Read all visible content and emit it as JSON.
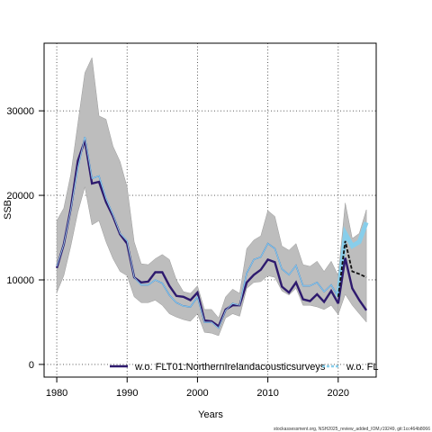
{
  "chart_data": {
    "type": "line",
    "title": "",
    "xlabel": "Years",
    "ylabel": "SSB",
    "xlim": [
      1978.2,
      2025.4
    ],
    "ylim": [
      -1500,
      38000
    ],
    "x_ticks": [
      1980,
      1990,
      2000,
      2010,
      2020
    ],
    "y_ticks": [
      0,
      10000,
      20000,
      30000
    ],
    "grid": true,
    "legend_position": "bottom",
    "x": [
      1980,
      1981,
      1982,
      1983,
      1984,
      1985,
      1986,
      1987,
      1988,
      1989,
      1990,
      1991,
      1992,
      1993,
      1994,
      1995,
      1996,
      1997,
      1998,
      1999,
      2000,
      2001,
      2002,
      2003,
      2004,
      2005,
      2006,
      2007,
      2008,
      2009,
      2010,
      2011,
      2012,
      2013,
      2014,
      2015,
      2016,
      2017,
      2018,
      2019,
      2020
    ],
    "band": {
      "lower": [
        8500,
        10500,
        14000,
        18000,
        21000,
        16500,
        17000,
        14500,
        12500,
        11000,
        10500,
        8000,
        7300,
        7300,
        7600,
        7000,
        6000,
        5600,
        5300,
        5100,
        6000,
        3800,
        3700,
        3400,
        5500,
        6000,
        5700,
        9000,
        9700,
        9800,
        10500,
        10300,
        8700,
        8200,
        9000,
        7000,
        7000,
        6800,
        6500,
        7000,
        5900
      ],
      "upper": [
        17000,
        18500,
        22500,
        28500,
        34500,
        36300,
        29400,
        29000,
        25800,
        24000,
        21000,
        14500,
        11900,
        11800,
        12500,
        13000,
        12400,
        10000,
        8600,
        8400,
        9300,
        6500,
        6500,
        5500,
        8000,
        8900,
        8400,
        13700,
        14700,
        15200,
        18200,
        17500,
        14000,
        13500,
        14300,
        11800,
        11600,
        12200,
        11000,
        12200,
        10500
      ]
    },
    "series": [
      {
        "name": "",
        "color": "#1f78d1",
        "values": [
          11600,
          14200,
          18300,
          23300,
          26900,
          22000,
          22300,
          19600,
          17700,
          15500,
          14600,
          10300,
          9400,
          9400,
          10000,
          9600,
          8200,
          7300,
          6900,
          6800,
          8000,
          5000,
          5000,
          4300,
          6400,
          7200,
          7000,
          10800,
          12400,
          12700,
          14300,
          13700,
          11300,
          10600,
          11700,
          9300,
          9300,
          9700,
          8600,
          9400,
          8000
        ]
      },
      {
        "name": "w.o. FLT01:NorthernIrelandacousticsurveys",
        "color": "#2e1a6e",
        "values": [
          11400,
          14200,
          18500,
          24100,
          26500,
          21400,
          21600,
          19200,
          17500,
          15400,
          14300,
          10300,
          9700,
          9800,
          10900,
          10900,
          9300,
          8100,
          8000,
          7600,
          8500,
          5200,
          5100,
          4500,
          6500,
          7000,
          7000,
          9700,
          10600,
          11200,
          12400,
          12100,
          9200,
          8500,
          9700,
          7700,
          7500,
          8300,
          7400,
          8700,
          7200
        ]
      }
    ],
    "forecast": {
      "x": [
        2020,
        2021,
        2022,
        2023,
        2024
      ],
      "band": {
        "lower": [
          5900,
          8300,
          7000,
          6000,
          5000
        ],
        "upper": [
          10500,
          19100,
          14900,
          15500,
          18300
        ]
      },
      "series": [
        {
          "name": "w.o. FLT01:NorthernIrelandacousticsurveys",
          "color": "#2e1a6e",
          "values": [
            7200,
            12600,
            9000,
            7600,
            6400
          ]
        },
        {
          "name": "w.o. FL",
          "color": "#87ceeb",
          "values": [
            8000,
            15500,
            14000,
            14500,
            16800
          ]
        },
        {
          "name": "",
          "color": "#111111",
          "values": [
            8000,
            14600,
            11000,
            10700,
            10300
          ]
        }
      ]
    },
    "legend": [
      {
        "label": "w.o. FLT01:NorthernIrelandacousticsurveys",
        "color": "#2e1a6e"
      },
      {
        "label": "w.o. FL",
        "color": "#87ceeb"
      }
    ],
    "caption": "stockassessment.org, NSH2025_review_added_IOM,r19249, git:1cc464b8066"
  }
}
